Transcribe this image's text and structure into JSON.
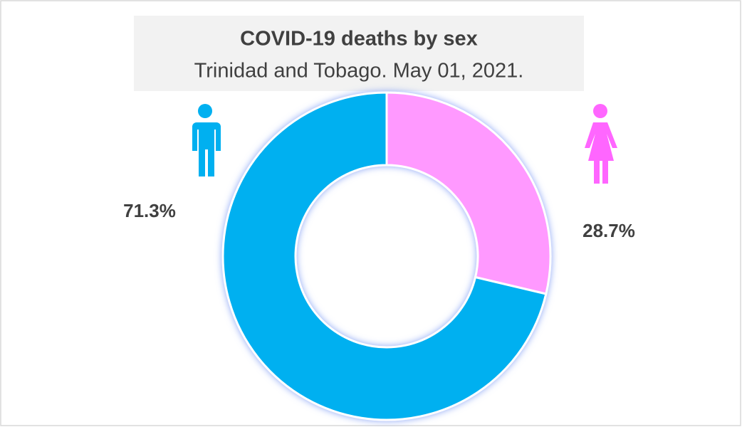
{
  "chart_data": {
    "type": "donut",
    "title": "COVID-19 deaths by sex",
    "subtitle": "Trinidad and Tobago. May 01, 2021.",
    "values": [
      28.7,
      71.3
    ],
    "value_labels": [
      "28.7%",
      "71.3%"
    ],
    "colors": [
      "#ff99ff",
      "#00b0f0"
    ]
  }
}
